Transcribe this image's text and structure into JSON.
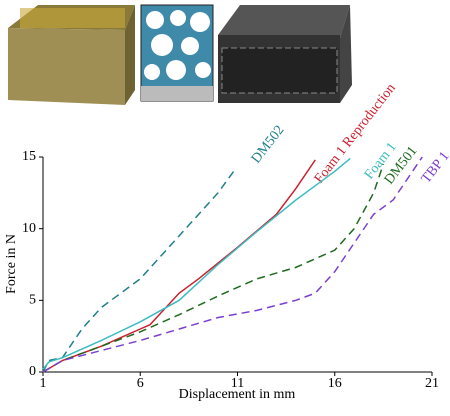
{
  "chart_data": {
    "type": "line",
    "x_label": "Displacement in mm",
    "y_label": "Force in N",
    "xlim": [
      1,
      21
    ],
    "ylim": [
      0,
      15
    ],
    "xticks": [
      1,
      6,
      11,
      16,
      21
    ],
    "yticks": [
      0,
      5,
      10,
      15
    ],
    "series": [
      {
        "name": "DM502",
        "color": "#1f7f8c",
        "dashed": true,
        "x": [
          1,
          1.3,
          2,
          2.5,
          3,
          4,
          5,
          6,
          7,
          8,
          9,
          10,
          10.8
        ],
        "values": [
          0,
          0.8,
          1,
          2,
          3,
          4.5,
          5.5,
          6.5,
          8,
          9.5,
          11,
          12.5,
          14
        ]
      },
      {
        "name": "Foam 1 Reproduction",
        "color": "#cc1f2f",
        "dashed": false,
        "x": [
          1,
          2,
          4,
          6,
          6.5,
          8,
          9,
          11,
          13,
          14,
          15
        ],
        "values": [
          0,
          0.8,
          1.8,
          3,
          3.3,
          5.5,
          6.5,
          8.7,
          11,
          12.8,
          14.8
        ]
      },
      {
        "name": "Foam 1",
        "color": "#3cbcc0",
        "dashed": false,
        "x": [
          1,
          1.3,
          2,
          4,
          6,
          8,
          10,
          12,
          14,
          15,
          16,
          16.8
        ],
        "values": [
          0.2,
          0.7,
          1,
          2.2,
          3.5,
          5,
          7.5,
          9.8,
          12,
          13,
          14,
          14.9
        ]
      },
      {
        "name": "DM501",
        "color": "#1f6a1f",
        "dashed": true,
        "x": [
          1,
          2,
          4,
          6,
          8,
          10,
          12,
          14,
          16,
          17,
          18,
          18.5
        ],
        "values": [
          0,
          0.8,
          1.8,
          2.8,
          4,
          5.3,
          6.5,
          7.3,
          8.5,
          10,
          12.5,
          14.5
        ]
      },
      {
        "name": "TBP 1",
        "color": "#7b3fd0",
        "dashed": true,
        "x": [
          1,
          2,
          4,
          6,
          8,
          10,
          12,
          14,
          15,
          16,
          17,
          18,
          19,
          20,
          20.5
        ],
        "values": [
          0,
          0.8,
          1.5,
          2.2,
          3,
          3.8,
          4.3,
          5,
          5.5,
          7,
          9,
          11,
          12,
          14,
          15
        ]
      }
    ]
  }
}
